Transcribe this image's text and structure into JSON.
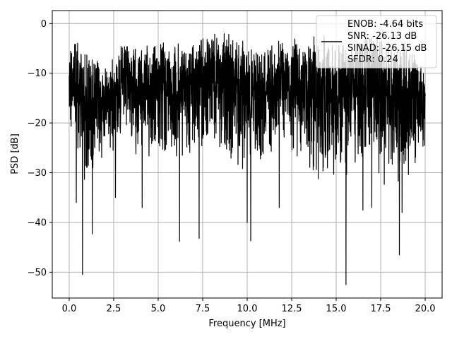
{
  "chart_data": {
    "type": "line",
    "title": "",
    "xlabel": "Frequency [MHz]",
    "ylabel": "PSD [dB]",
    "xlim": [
      -0.95,
      20.95
    ],
    "ylim": [
      -55.2,
      2.6
    ],
    "grid": true,
    "legend_position": "top-right",
    "x_ticks": [
      0.0,
      2.5,
      5.0,
      7.5,
      10.0,
      12.5,
      15.0,
      17.5,
      20.0
    ],
    "x_tick_labels": [
      "0.0",
      "2.5",
      "5.0",
      "7.5",
      "10.0",
      "12.5",
      "15.0",
      "17.5",
      "20.0"
    ],
    "y_ticks": [
      0,
      -10,
      -20,
      -30,
      -40,
      -50
    ],
    "y_tick_labels": [
      "0",
      "−10",
      "−20",
      "−30",
      "−40",
      "−50"
    ],
    "series": [
      {
        "name": "ENOB: -4.64 bits\nSNR: -26.13 dB\nSINAD: -26.15 dB\nSFDR: 0.24",
        "color": "#000000",
        "x_range": [
          0,
          20
        ],
        "envelope_upper": [
          -2.5,
          -4.5,
          -9.0,
          -4.0,
          -5.0,
          -3.0,
          -4.0,
          -3.0,
          -2.0,
          -2.0,
          -3.0,
          -5.0,
          -2.5,
          -3.0,
          -2.0,
          -3.0,
          -4.0,
          -2.0,
          -4.0,
          -3.0,
          -10.0
        ],
        "envelope_lower": [
          -22.0,
          -36.0,
          -27.0,
          -25.0,
          -28.0,
          -28.0,
          -30.0,
          -27.0,
          -26.0,
          -30.0,
          -30.0,
          -28.0,
          -26.0,
          -30.0,
          -34.0,
          -32.0,
          -32.0,
          -28.0,
          -36.0,
          -34.0,
          -25.0
        ],
        "dips": [
          {
            "x": 0.75,
            "y": -50.5
          },
          {
            "x": 1.3,
            "y": -42.3
          },
          {
            "x": 0.4,
            "y": -36.0
          },
          {
            "x": 6.2,
            "y": -43.8
          },
          {
            "x": 7.3,
            "y": -43.2
          },
          {
            "x": 10.0,
            "y": -40.0
          },
          {
            "x": 10.2,
            "y": -43.7
          },
          {
            "x": 15.55,
            "y": -52.5
          },
          {
            "x": 18.55,
            "y": -46.5
          },
          {
            "x": 4.1,
            "y": -37.0
          },
          {
            "x": 16.5,
            "y": -37.5
          },
          {
            "x": 17.0,
            "y": -37.0
          },
          {
            "x": 18.7,
            "y": -38.0
          },
          {
            "x": 11.8,
            "y": -37.0
          },
          {
            "x": 2.6,
            "y": -35.0
          }
        ]
      }
    ]
  },
  "legend": {
    "lines": [
      "ENOB: -4.64 bits",
      "SNR: -26.13 dB",
      "SINAD: -26.15 dB",
      "SFDR: 0.24"
    ]
  }
}
